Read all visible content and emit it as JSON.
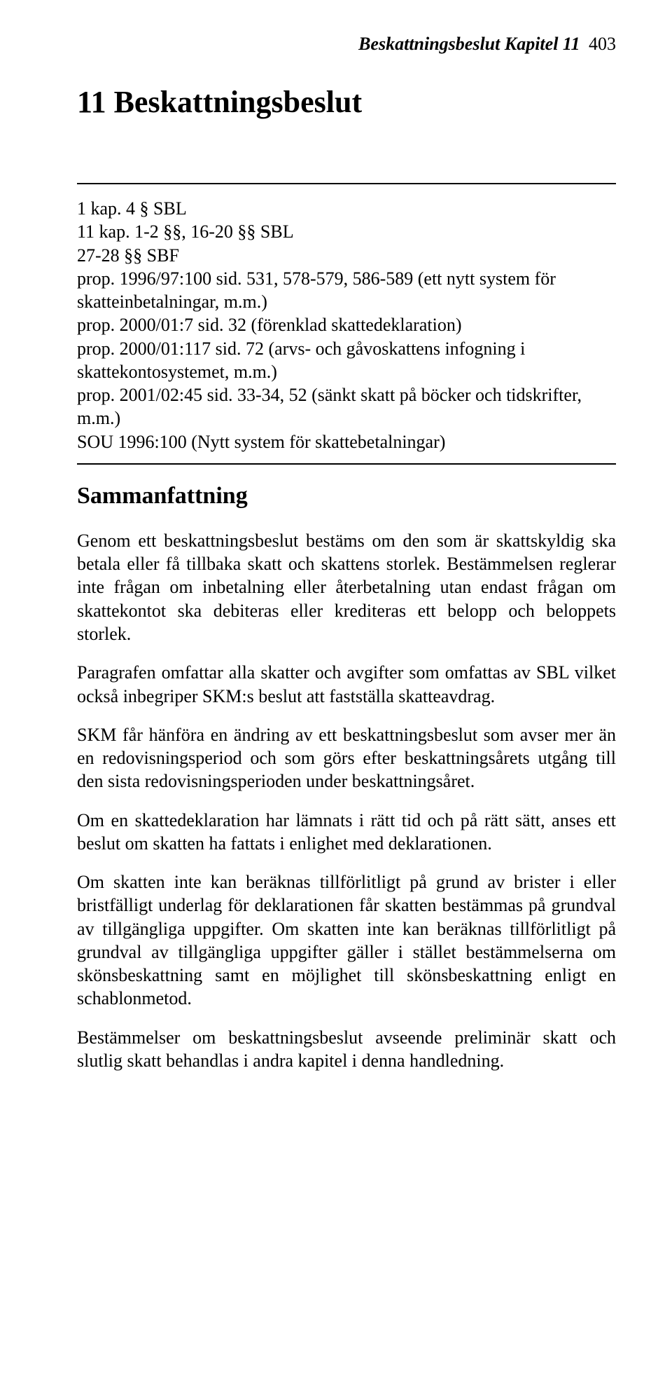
{
  "header": {
    "running_title": "Beskattningsbeslut Kapitel 11",
    "page_number": "403"
  },
  "chapter": {
    "title": "11 Beskattningsbeslut"
  },
  "references": {
    "lines": [
      "1 kap. 4 § SBL",
      "11 kap. 1-2 §§, 16-20 §§ SBL",
      "27-28 §§ SBF",
      "prop. 1996/97:100 sid. 531, 578-579, 586-589 (ett nytt system för skatteinbetalningar, m.m.)",
      "prop. 2000/01:7 sid. 32 (förenklad skattedeklaration)",
      "prop. 2000/01:117 sid. 72 (arvs- och gåvoskattens infogning i skattekontosystemet, m.m.)",
      "prop. 2001/02:45 sid. 33-34, 52 (sänkt skatt på böcker och tidskrifter, m.m.)",
      "SOU 1996:100 (Nytt system för skattebetalningar)"
    ]
  },
  "summary": {
    "heading": "Sammanfattning",
    "paragraphs": [
      "Genom ett beskattningsbeslut bestäms om den som är skattskyldig ska betala eller få tillbaka skatt och skattens storlek. Bestämmelsen reglerar inte frågan om inbetalning eller återbetalning utan endast frågan om skattekontot ska debiteras eller krediteras ett belopp och beloppets storlek.",
      "Paragrafen omfattar alla skatter och avgifter som omfattas av SBL vilket också inbegriper SKM:s beslut att fastställa skatteavdrag.",
      "SKM får hänföra en ändring av ett beskattningsbeslut som avser mer än en redovisningsperiod och som görs efter beskattningsårets utgång till den sista redovisningsperioden under beskattningsåret.",
      "Om en skattedeklaration har lämnats i rätt tid och på rätt sätt, anses ett beslut om skatten ha fattats i enlighet med deklarationen.",
      "Om skatten inte kan beräknas tillförlitligt på grund av brister i eller bristfälligt underlag för deklarationen får skatten bestämmas på grundval av tillgängliga uppgifter. Om skatten inte kan beräknas tillförlitligt på grundval av tillgängliga uppgifter gäller i stället bestämmelserna om skönsbeskattning samt en möjlighet till skönsbeskattning enligt en schablonmetod.",
      "Bestämmelser om beskattningsbeslut avseende preliminär skatt och slutlig skatt behandlas i andra kapitel i denna handledning."
    ]
  }
}
